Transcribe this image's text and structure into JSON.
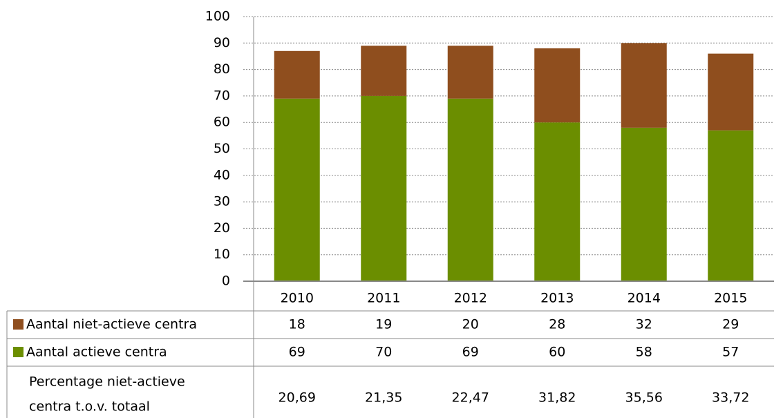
{
  "chart_data": {
    "type": "bar",
    "stacked": true,
    "categories": [
      "2010",
      "2011",
      "2012",
      "2013",
      "2014",
      "2015"
    ],
    "series": [
      {
        "name": "Aantal actieve centra",
        "color": "#6b8e00",
        "values": [
          69,
          70,
          69,
          60,
          58,
          57
        ]
      },
      {
        "name": "Aantal niet-actieve centra",
        "color": "#8f4e1e",
        "values": [
          18,
          19,
          20,
          28,
          32,
          29
        ]
      }
    ],
    "ylim": [
      0,
      100
    ],
    "yticks": [
      0,
      10,
      20,
      30,
      40,
      50,
      60,
      70,
      80,
      90,
      100
    ],
    "grid": true,
    "table": {
      "row_label": [
        "Percentage niet-actieve",
        "centra t.o.v. totaal"
      ],
      "values": [
        "20,69",
        "21,35",
        "22,47",
        "31,82",
        "35,56",
        "33,72"
      ]
    }
  }
}
